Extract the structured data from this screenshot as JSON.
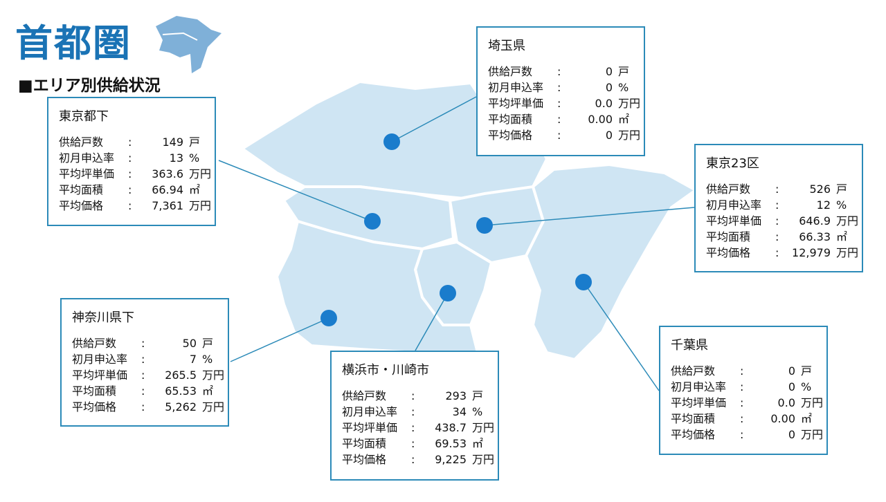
{
  "title": "首都圏",
  "subtitle": "■エリア別供給状況",
  "colors": {
    "accent": "#1a73b5",
    "map_fill": "#cfe5f3",
    "dot": "#1a7ccc",
    "box_border": "#2b8ab8"
  },
  "labels": [
    "供給戸数",
    "初月申込率",
    "平均坪単価",
    "平均面積",
    "平均価格"
  ],
  "units": [
    "戸",
    "%",
    "万円",
    "㎡",
    "万円"
  ],
  "separator": ":",
  "areas": [
    {
      "name": "埼玉県",
      "values": [
        "0",
        "0",
        "0.0",
        "0.00",
        "0"
      ]
    },
    {
      "name": "東京都下",
      "values": [
        "149",
        "13",
        "363.6",
        "66.94",
        "7,361"
      ]
    },
    {
      "name": "東京23区",
      "values": [
        "526",
        "12",
        "646.9",
        "66.33",
        "12,979"
      ]
    },
    {
      "name": "神奈川県下",
      "values": [
        "50",
        "7",
        "265.5",
        "65.53",
        "5,262"
      ]
    },
    {
      "name": "横浜市・川崎市",
      "values": [
        "293",
        "34",
        "438.7",
        "69.53",
        "9,225"
      ]
    },
    {
      "name": "千葉県",
      "values": [
        "0",
        "0",
        "0.0",
        "0.00",
        "0"
      ]
    }
  ]
}
